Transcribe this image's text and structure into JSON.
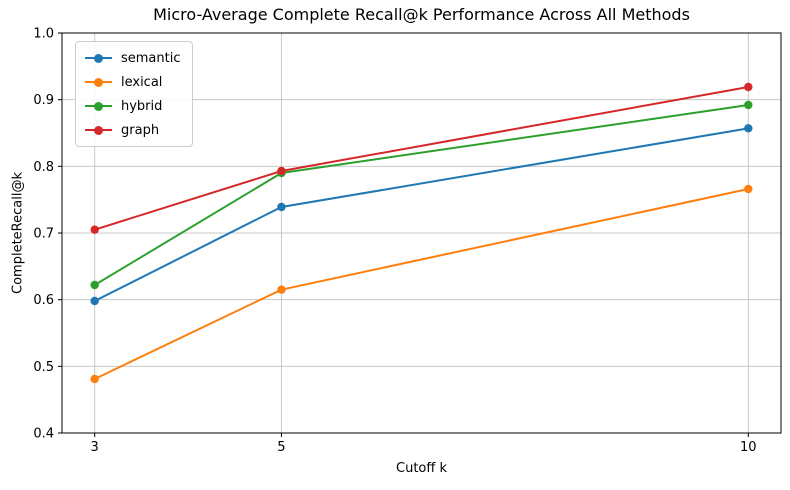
{
  "figure": {
    "background_color": "#ffffff"
  },
  "chart_data": {
    "type": "line",
    "title": "Micro-Average Complete Recall@k Performance Across All Methods",
    "xlabel": "Cutoff k",
    "ylabel": "CompleteRecall@k",
    "x": [
      3,
      5,
      10
    ],
    "xticks": [
      3,
      5,
      10
    ],
    "yticks": [
      0.4,
      0.5,
      0.6,
      0.7,
      0.8,
      0.9,
      1.0
    ],
    "xlim": [
      2.65,
      10.35
    ],
    "ylim": [
      0.4,
      1.0
    ],
    "grid": true,
    "grid_color": "#c8c8c8",
    "axis_color": "#000000",
    "legend_position": "upper left",
    "marker": "circle",
    "series": [
      {
        "name": "semantic",
        "color": "#1f77b4",
        "values": [
          0.598,
          0.739,
          0.857
        ]
      },
      {
        "name": "lexical",
        "color": "#ff7f0e",
        "values": [
          0.481,
          0.615,
          0.766
        ]
      },
      {
        "name": "hybrid",
        "color": "#2ca02c",
        "values": [
          0.622,
          0.79,
          0.892
        ]
      },
      {
        "name": "graph",
        "color": "#d62728",
        "values": [
          0.705,
          0.793,
          0.919
        ]
      }
    ]
  }
}
